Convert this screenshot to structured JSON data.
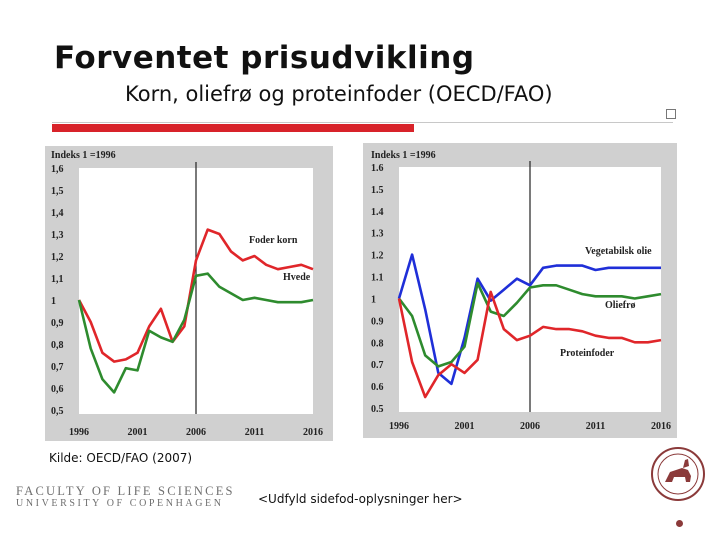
{
  "slide": {
    "title": "Forventet prisudvikling",
    "subtitle": "Korn, oliefrø og proteinfoder (OECD/FAO)",
    "source": "Kilde: OECD/FAO (2007)",
    "footer": "<Udfyld sidefod-oplysninger her>",
    "faculty_line1": "FACULTY OF LIFE SCIENCES",
    "faculty_line2": "UNIVERSITY OF COPENHAGEN",
    "colors": {
      "accent": "#d8232a",
      "chart_bg": "#d0d0d0",
      "seal": "#8b3a3a"
    }
  },
  "chart_data": [
    {
      "type": "line",
      "index_label": "Indeks 1 =1996",
      "x_ticks": [
        1996,
        2001,
        2006,
        2011,
        2016
      ],
      "xlim": [
        1996,
        2016
      ],
      "y_ticks": [
        "1,6",
        "1,5",
        "1,4",
        "1,3",
        "1,2",
        "1,1",
        "1",
        "0,9",
        "0,8",
        "0,7",
        "0,6",
        "0,5"
      ],
      "ylim": [
        0.5,
        1.6
      ],
      "vline_x": 2006,
      "grid": false,
      "series": [
        {
          "name": "Foder korn",
          "color": "#e0262a",
          "x": [
            1996,
            1997,
            1998,
            1999,
            2000,
            2001,
            2002,
            2003,
            2004,
            2005,
            2006,
            2007,
            2008,
            2009,
            2010,
            2011,
            2012,
            2013,
            2014,
            2015,
            2016
          ],
          "values": [
            1.0,
            0.9,
            0.76,
            0.72,
            0.73,
            0.76,
            0.88,
            0.96,
            0.81,
            0.88,
            1.18,
            1.32,
            1.3,
            1.22,
            1.18,
            1.2,
            1.16,
            1.14,
            1.15,
            1.16,
            1.14
          ]
        },
        {
          "name": "Hvede",
          "color": "#2e8b2e",
          "x": [
            1996,
            1997,
            1998,
            1999,
            2000,
            2001,
            2002,
            2003,
            2004,
            2005,
            2006,
            2007,
            2008,
            2009,
            2010,
            2011,
            2012,
            2013,
            2014,
            2015,
            2016
          ],
          "values": [
            1.0,
            0.78,
            0.64,
            0.58,
            0.69,
            0.68,
            0.86,
            0.83,
            0.81,
            0.91,
            1.11,
            1.12,
            1.06,
            1.03,
            1.0,
            1.01,
            1.0,
            0.99,
            0.99,
            0.99,
            1.0
          ]
        }
      ]
    },
    {
      "type": "line",
      "index_label": "Indeks 1 =1996",
      "x_ticks": [
        1996,
        2001,
        2006,
        2011,
        2016
      ],
      "xlim": [
        1996,
        2016
      ],
      "y_ticks": [
        "1.6",
        "1.5",
        "1.4",
        "1.3",
        "1.2",
        "1.1",
        "1",
        "0.9",
        "0.8",
        "0.7",
        "0.6",
        "0.5"
      ],
      "ylim": [
        0.5,
        1.6
      ],
      "vline_x": 2006,
      "grid": false,
      "series": [
        {
          "name": "Vegetabilsk olie",
          "color": "#1f2fd8",
          "x": [
            1996,
            1997,
            1998,
            1999,
            2000,
            2001,
            2002,
            2003,
            2004,
            2005,
            2006,
            2007,
            2008,
            2009,
            2010,
            2011,
            2012,
            2013,
            2014,
            2015,
            2016
          ],
          "values": [
            1.0,
            1.2,
            0.95,
            0.66,
            0.61,
            0.82,
            1.09,
            0.99,
            1.04,
            1.09,
            1.06,
            1.14,
            1.15,
            1.15,
            1.15,
            1.13,
            1.14,
            1.14,
            1.14,
            1.14,
            1.14
          ]
        },
        {
          "name": "Oliefrø",
          "color": "#2e8b2e",
          "x": [
            1996,
            1997,
            1998,
            1999,
            2000,
            2001,
            2002,
            2003,
            2004,
            2005,
            2006,
            2007,
            2008,
            2009,
            2010,
            2011,
            2012,
            2013,
            2014,
            2015,
            2016
          ],
          "values": [
            1.0,
            0.92,
            0.74,
            0.69,
            0.71,
            0.78,
            1.07,
            0.94,
            0.92,
            0.98,
            1.05,
            1.06,
            1.06,
            1.04,
            1.02,
            1.01,
            1.01,
            1.01,
            1.0,
            1.01,
            1.02
          ]
        },
        {
          "name": "Proteinfoder",
          "color": "#e0262a",
          "x": [
            1996,
            1997,
            1998,
            1999,
            2000,
            2001,
            2002,
            2003,
            2004,
            2005,
            2006,
            2007,
            2008,
            2009,
            2010,
            2011,
            2012,
            2013,
            2014,
            2015,
            2016
          ],
          "values": [
            1.0,
            0.71,
            0.55,
            0.65,
            0.7,
            0.66,
            0.72,
            1.03,
            0.86,
            0.81,
            0.83,
            0.87,
            0.86,
            0.86,
            0.85,
            0.83,
            0.82,
            0.82,
            0.8,
            0.8,
            0.81
          ]
        }
      ]
    }
  ]
}
